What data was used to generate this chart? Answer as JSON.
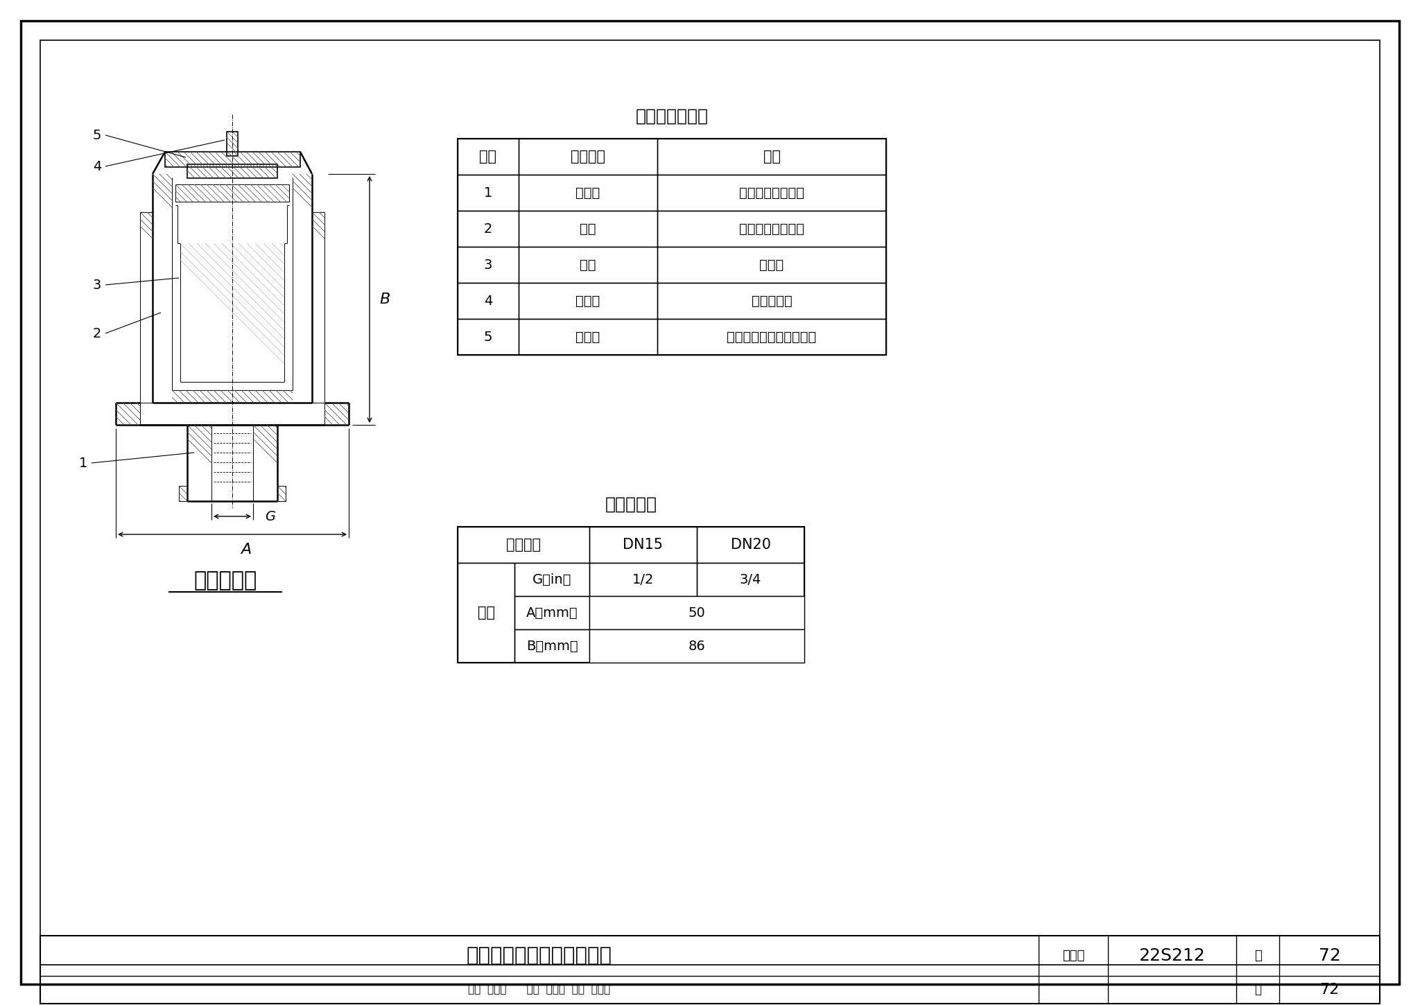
{
  "table1_title": "部件名称及材质",
  "table1_headers": [
    "序号",
    "部件名称",
    "材质"
  ],
  "table1_rows": [
    [
      "1",
      "连接头",
      "强化尼龙、不锈钢"
    ],
    [
      "2",
      "壳体",
      "强化尼龙、不锈钢"
    ],
    [
      "3",
      "浮筒",
      "聚丙烯"
    ],
    [
      "4",
      "密封杆",
      "铜、不锈钢"
    ],
    [
      "5",
      "密封垫",
      "丁腈橡胶、三元乙丙橡胶"
    ]
  ],
  "table2_title": "外形尺寸表",
  "table2_headers": [
    "公称直径",
    "DN15",
    "DN20"
  ],
  "table2_row_labels": [
    "G（in）",
    "A（mm）",
    "B（mm）"
  ],
  "table2_data": [
    [
      "1/2",
      "3/4"
    ],
    [
      "50",
      ""
    ],
    [
      "86",
      ""
    ]
  ],
  "table2_left_label": "尺寸",
  "drawing_label": "自动排气阀",
  "footer_title": "自动排气阀结构及外形尺寸",
  "footer_atlas_label": "图集号",
  "footer_atlas_num": "22S212",
  "footer_page_label": "页",
  "footer_page_num": "72",
  "footer_credits": "审核  秉心国      校对  欧阳力  设计  朱华俊"
}
